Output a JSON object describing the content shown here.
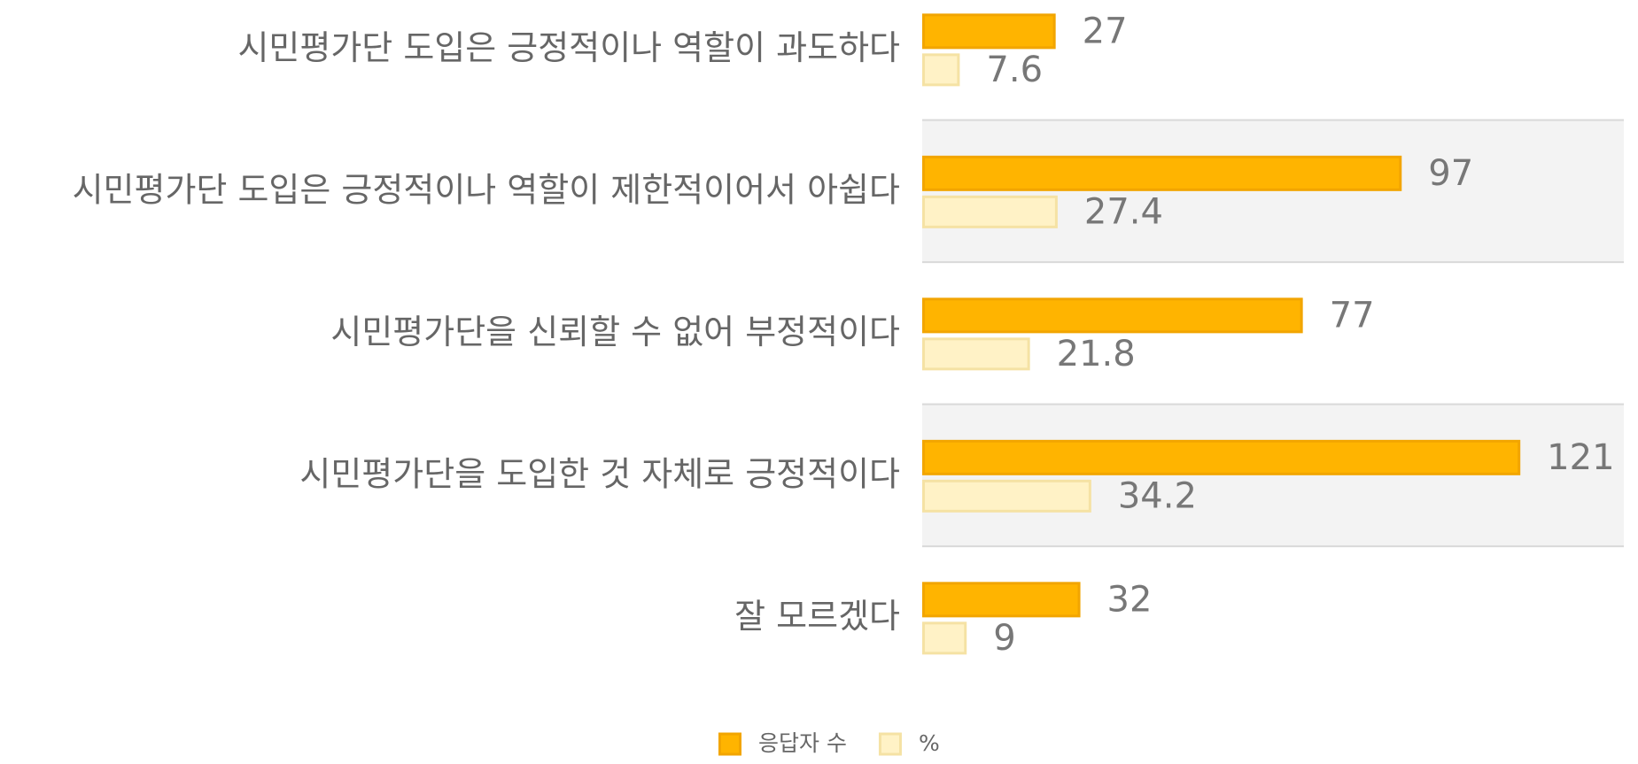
{
  "chart_data": {
    "type": "bar",
    "orientation": "horizontal",
    "categories": [
      "시민평가단 도입은 긍정적이나 역할이 과도하다",
      "시민평가단 도입은 긍정적이나 역할이 제한적이어서 아쉽다",
      "시민평가단을 신뢰할 수 없어 부정적이다",
      "시민평가단을 도입한 것 자체로 긍정적이다",
      "잘 모르겠다"
    ],
    "series": [
      {
        "name": "응답자 수",
        "color": "#FFB400",
        "values": [
          27,
          97,
          77,
          121,
          32
        ]
      },
      {
        "name": "%",
        "color": "#FFF2C6",
        "values": [
          7.6,
          27.4,
          21.8,
          34.2,
          9
        ]
      }
    ]
  }
}
